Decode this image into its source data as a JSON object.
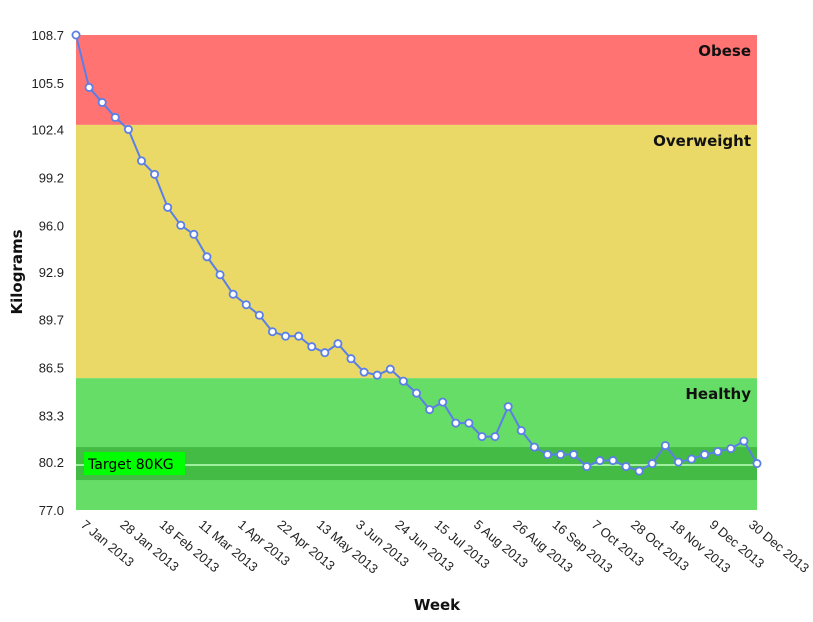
{
  "chart_data": {
    "type": "line",
    "xlabel": "Week",
    "ylabel": "Kilograms",
    "ylim": [
      77.0,
      108.7
    ],
    "yticks": [
      "77.0",
      "80.2",
      "83.3",
      "86.5",
      "89.7",
      "92.9",
      "96.0",
      "99.2",
      "102.4",
      "105.5",
      "108.7"
    ],
    "xticks": [
      "7 Jan 2013",
      "28 Jan 2013",
      "18 Feb 2013",
      "11 Mar 2013",
      "1 Apr 2013",
      "22 Apr 2013",
      "13 May 2013",
      "3 Jun 2013",
      "24 Jun 2013",
      "15 Jul 2013",
      "5 Aug 2013",
      "26 Aug 2013",
      "16 Sep 2013",
      "7 Oct 2013",
      "28 Oct 2013",
      "18 Nov 2013",
      "9 Dec 2013",
      "30 Dec 2013"
    ],
    "zones": [
      {
        "label": "Obese",
        "from": 102.7,
        "to": 108.7,
        "color": "#ff7373"
      },
      {
        "label": "Overweight",
        "from": 85.8,
        "to": 102.7,
        "color": "#ead966"
      },
      {
        "label": "Healthy",
        "from": 77.0,
        "to": 85.8,
        "color": "#66dd66"
      }
    ],
    "target": {
      "label": "Target 80KG",
      "value": 80.0,
      "band": [
        79.0,
        81.2
      ],
      "band_color": "#44bb44",
      "label_color": "#00ff00"
    },
    "line_color": "#5b7fe6",
    "series": [
      {
        "values": [
          108.7,
          105.2,
          104.2,
          103.2,
          102.4,
          100.3,
          99.4,
          97.2,
          96.0,
          95.4,
          93.9,
          92.7,
          91.4,
          90.7,
          90.0,
          88.9,
          88.6,
          88.6,
          87.9,
          87.5,
          88.1,
          87.1,
          86.2,
          86.0,
          86.4,
          85.6,
          84.8,
          83.7,
          84.2,
          82.8,
          82.8,
          81.9,
          81.9,
          83.9,
          82.3,
          81.2,
          80.7,
          80.7,
          80.7,
          79.9,
          80.3,
          80.3,
          79.9,
          79.6,
          80.1,
          81.3,
          80.2,
          80.4,
          80.7,
          80.9,
          81.1,
          81.6,
          80.1
        ]
      }
    ]
  }
}
